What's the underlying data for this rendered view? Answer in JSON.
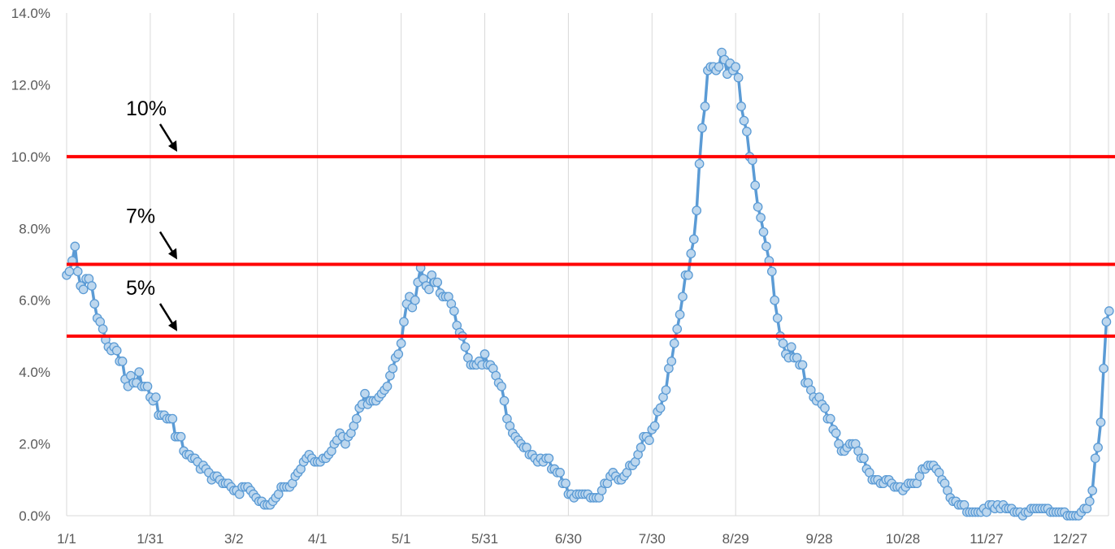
{
  "chart_data": {
    "type": "line",
    "title": "",
    "xlabel": "",
    "ylabel": "",
    "x_tick_labels": [
      "1/1",
      "1/31",
      "3/2",
      "4/1",
      "5/1",
      "5/31",
      "6/30",
      "7/30",
      "8/29",
      "9/28",
      "10/28",
      "11/27",
      "12/27"
    ],
    "x_range_days": [
      0,
      366
    ],
    "y_tick_labels": [
      "0.0%",
      "2.0%",
      "4.0%",
      "6.0%",
      "8.0%",
      "10.0%",
      "12.0%",
      "14.0%"
    ],
    "ylim": [
      0,
      14
    ],
    "grid": "vertical",
    "series": [
      {
        "color": "#5B9BD5",
        "marker_fill": "#BDD7EE",
        "x_step_days": 1,
        "values": [
          6.7,
          6.8,
          7.1,
          7.5,
          6.8,
          6.4,
          6.3,
          6.6,
          6.6,
          6.4,
          5.9,
          5.5,
          5.4,
          5.2,
          4.9,
          4.7,
          4.6,
          4.7,
          4.6,
          4.3,
          4.3,
          3.8,
          3.6,
          3.9,
          3.7,
          3.7,
          4.0,
          3.6,
          3.6,
          3.6,
          3.3,
          3.2,
          3.3,
          2.8,
          2.8,
          2.8,
          2.7,
          2.7,
          2.7,
          2.2,
          2.2,
          2.2,
          1.8,
          1.7,
          1.7,
          1.6,
          1.6,
          1.5,
          1.3,
          1.4,
          1.3,
          1.2,
          1.0,
          1.1,
          1.1,
          1.0,
          0.9,
          0.9,
          0.9,
          0.8,
          0.7,
          0.7,
          0.6,
          0.8,
          0.8,
          0.8,
          0.7,
          0.6,
          0.5,
          0.4,
          0.4,
          0.3,
          0.3,
          0.3,
          0.4,
          0.5,
          0.6,
          0.8,
          0.8,
          0.8,
          0.8,
          0.9,
          1.1,
          1.2,
          1.3,
          1.5,
          1.6,
          1.7,
          1.6,
          1.5,
          1.5,
          1.5,
          1.6,
          1.6,
          1.7,
          1.8,
          2.0,
          2.1,
          2.3,
          2.2,
          2.0,
          2.2,
          2.3,
          2.5,
          2.7,
          3.0,
          3.1,
          3.4,
          3.1,
          3.2,
          3.2,
          3.2,
          3.3,
          3.4,
          3.5,
          3.6,
          3.9,
          4.1,
          4.4,
          4.5,
          4.8,
          5.4,
          5.9,
          6.1,
          5.8,
          6.0,
          6.5,
          6.9,
          6.6,
          6.4,
          6.3,
          6.7,
          6.5,
          6.5,
          6.2,
          6.1,
          6.1,
          6.1,
          5.9,
          5.7,
          5.3,
          5.1,
          5.0,
          4.7,
          4.4,
          4.2,
          4.2,
          4.2,
          4.3,
          4.2,
          4.5,
          4.2,
          4.2,
          4.1,
          3.9,
          3.7,
          3.6,
          3.2,
          2.7,
          2.5,
          2.3,
          2.2,
          2.1,
          2.0,
          1.9,
          1.9,
          1.7,
          1.7,
          1.6,
          1.5,
          1.6,
          1.5,
          1.6,
          1.6,
          1.3,
          1.3,
          1.2,
          1.2,
          0.9,
          0.9,
          0.6,
          0.6,
          0.5,
          0.6,
          0.6,
          0.6,
          0.6,
          0.6,
          0.5,
          0.5,
          0.5,
          0.5,
          0.7,
          0.9,
          0.9,
          1.1,
          1.2,
          1.1,
          1.0,
          1.0,
          1.1,
          1.2,
          1.4,
          1.4,
          1.5,
          1.7,
          1.9,
          2.2,
          2.2,
          2.1,
          2.4,
          2.5,
          2.9,
          3.0,
          3.3,
          3.5,
          4.1,
          4.3,
          4.8,
          5.2,
          5.6,
          6.1,
          6.7,
          6.7,
          7.3,
          7.7,
          8.5,
          9.8,
          10.8,
          11.4,
          12.4,
          12.5,
          12.5,
          12.4,
          12.5,
          12.9,
          12.7,
          12.3,
          12.6,
          12.4,
          12.5,
          12.2,
          11.4,
          11.0,
          10.7,
          10.0,
          9.9,
          9.2,
          8.6,
          8.3,
          7.9,
          7.5,
          7.1,
          6.8,
          6.0,
          5.5,
          5.0,
          4.8,
          4.5,
          4.4,
          4.7,
          4.4,
          4.4,
          4.2,
          4.2,
          3.7,
          3.7,
          3.5,
          3.3,
          3.2,
          3.3,
          3.1,
          3.0,
          2.7,
          2.7,
          2.4,
          2.3,
          2.0,
          1.8,
          1.8,
          1.9,
          2.0,
          2.0,
          2.0,
          1.8,
          1.6,
          1.6,
          1.3,
          1.2,
          1.0,
          1.0,
          1.0,
          0.9,
          0.9,
          1.0,
          1.0,
          0.9,
          0.8,
          0.8,
          0.8,
          0.7,
          0.8,
          0.9,
          0.9,
          0.9,
          0.9,
          1.1,
          1.3,
          1.3,
          1.4,
          1.4,
          1.4,
          1.3,
          1.2,
          1.0,
          0.9,
          0.7,
          0.5,
          0.4,
          0.4,
          0.3,
          0.3,
          0.3,
          0.1,
          0.1,
          0.1,
          0.1,
          0.1,
          0.1,
          0.2,
          0.1,
          0.3,
          0.3,
          0.2,
          0.3,
          0.2,
          0.3,
          0.2,
          0.2,
          0.2,
          0.1,
          0.1,
          0.1,
          0.0,
          0.1,
          0.1,
          0.2,
          0.2,
          0.2,
          0.2,
          0.2,
          0.2,
          0.2,
          0.1,
          0.1,
          0.1,
          0.1,
          0.1,
          0.1,
          0.0,
          0.0,
          0.0,
          0.0,
          0.0,
          0.1,
          0.2,
          0.2,
          0.4,
          0.7,
          1.6,
          1.9,
          2.6,
          4.1,
          5.4,
          5.7
        ]
      }
    ],
    "reference_lines": [
      {
        "value": 10,
        "label": "10%",
        "color": "#FF0000"
      },
      {
        "value": 7,
        "label": "7%",
        "color": "#FF0000"
      },
      {
        "value": 5,
        "label": "5%",
        "color": "#FF0000"
      }
    ]
  }
}
